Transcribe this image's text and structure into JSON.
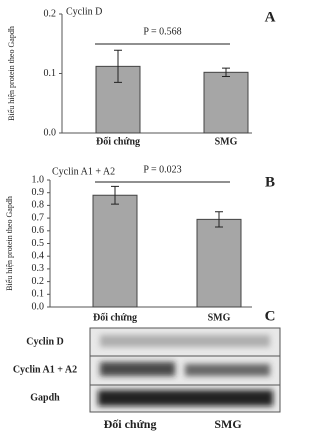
{
  "chart_data": [
    {
      "type": "bar",
      "panel": "A",
      "title": "Cyclin D",
      "y_label": "Biểu hiện protein theo Gapdh",
      "categories": [
        "Đối chứng",
        "SMG"
      ],
      "values": [
        0.112,
        0.102
      ],
      "errors": [
        0.027,
        0.007
      ],
      "color": "#a6a6a6",
      "ylim": [
        0,
        0.2
      ],
      "yticks": [
        {
          "value": 0,
          "label": "0.0"
        },
        0.1,
        0.2
      ],
      "grid": false,
      "annotation": "P = 0.568"
    },
    {
      "type": "bar",
      "panel": "B",
      "title": "Cyclin A1 + A2",
      "y_label": "Biểu hiện protein theo Gapdh",
      "categories": [
        "Đối chứng",
        "SMG"
      ],
      "values": [
        0.88,
        0.69
      ],
      "errors": [
        0.07,
        0.06
      ],
      "color": "#a6a6a6",
      "ylim": [
        0,
        1
      ],
      "yticks": [
        {
          "value": 0,
          "label": "0.0"
        },
        0.1,
        0.2,
        0.3,
        0.4,
        0.5,
        0.6,
        0.7,
        0.8,
        0.9,
        {
          "value": 1,
          "label": "1.0"
        }
      ],
      "grid": false,
      "annotation": "P = 0.023"
    }
  ],
  "blot": {
    "panel": "C",
    "rows": [
      "Cyclin D",
      "Cyclin A1 + A2",
      "Gapdh"
    ],
    "columns": [
      "Đối chứng",
      "SMG"
    ]
  }
}
